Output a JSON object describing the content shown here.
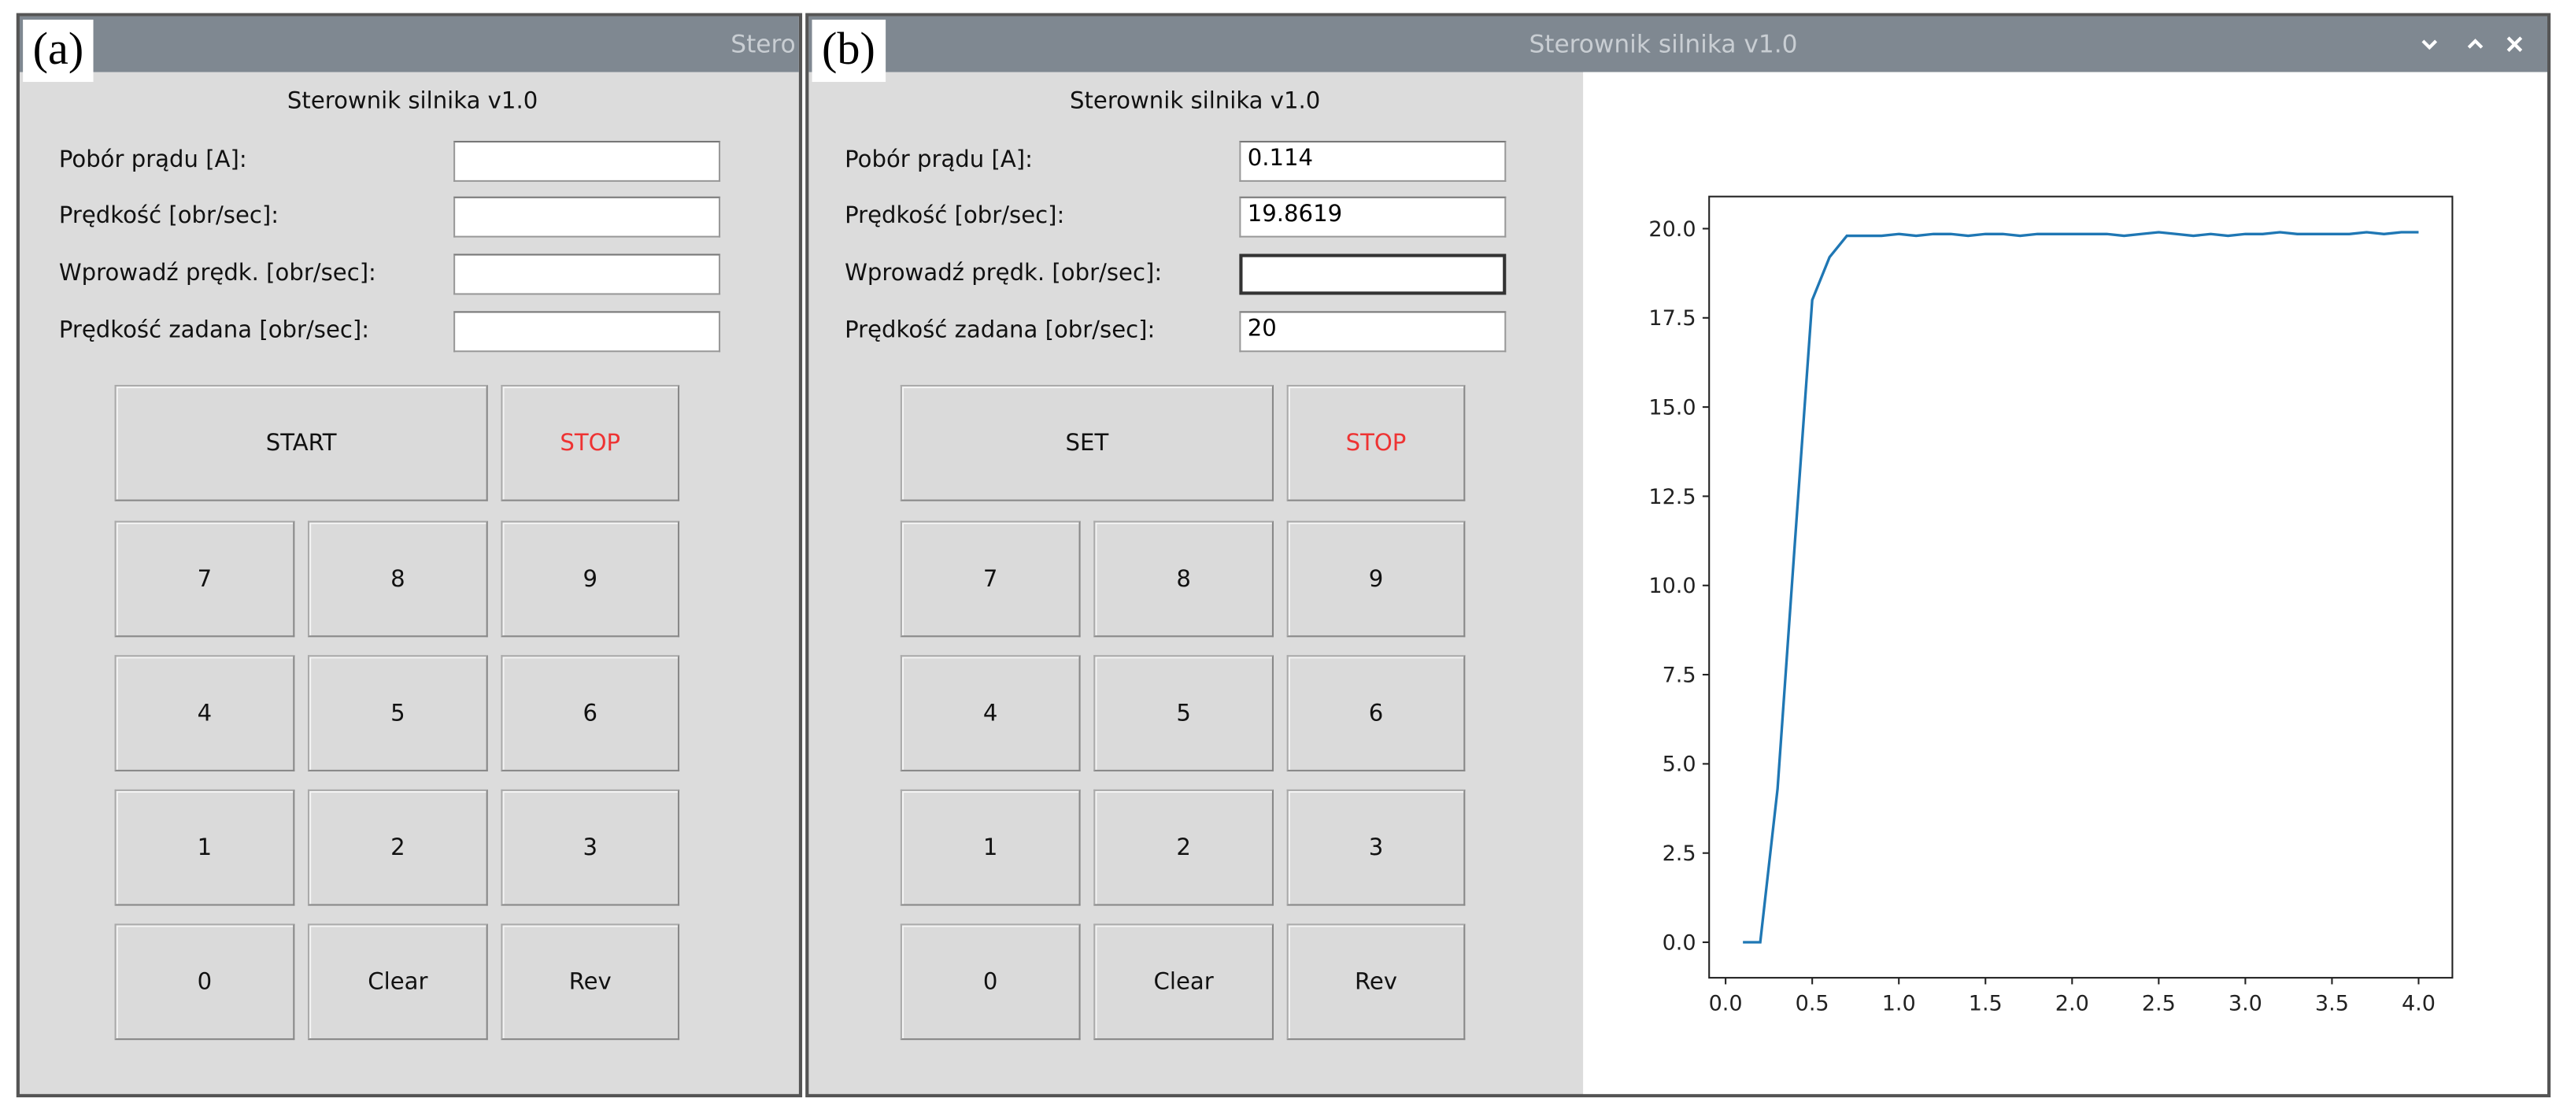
{
  "panels": [
    {
      "tag": "(a)",
      "window_title": "Stero",
      "heading": "Sterownik silnika v1.0",
      "fields": [
        {
          "label": "Pobór prądu [A]:"
        },
        {
          "label": "Prędkość [obr/sec]:"
        },
        {
          "label": "Wprowadź prędk. [obr/sec]:"
        },
        {
          "label": "Prędkość zadana [obr/sec]:"
        }
      ],
      "buttons": [
        "START",
        "STOP",
        "7",
        "8",
        "9",
        "4",
        "5",
        "6",
        "1",
        "2",
        "3",
        "0",
        "Clear",
        "Rev"
      ]
    },
    {
      "tag": "(b)",
      "window_title": "Sterownik silnika v1.0",
      "heading": "Sterownik silnika v1.0",
      "fields": [
        {
          "label": "Pobór prądu [A]:",
          "value": "0.114"
        },
        {
          "label": "Prędkość [obr/sec]:",
          "value": "19.8619"
        },
        {
          "label": "Wprowadź prędk. [obr/sec]:"
        },
        {
          "label": "Prędkość zadana [obr/sec]:",
          "value": "20"
        }
      ],
      "buttons": [
        "SET",
        "STOP",
        "7",
        "8",
        "9",
        "4",
        "5",
        "6",
        "1",
        "2",
        "3",
        "0",
        "Clear",
        "Rev"
      ],
      "chart_data": {
        "type": "line",
        "color": "#1f77b4",
        "x": [
          0.1,
          0.2,
          0.3,
          0.4,
          0.5,
          0.6,
          0.7,
          0.8,
          0.9,
          1.0,
          1.1,
          1.2,
          1.3,
          1.4,
          1.5,
          1.6,
          1.7,
          1.8,
          1.9,
          2.0,
          2.1,
          2.2,
          2.3,
          2.4,
          2.5,
          2.6,
          2.7,
          2.8,
          2.9,
          3.0,
          3.1,
          3.2,
          3.3,
          3.4,
          3.5,
          3.6,
          3.7,
          3.8,
          3.9,
          4.0
        ],
        "values": [
          0,
          0,
          4.3,
          11.2,
          18.0,
          19.2,
          19.8,
          19.8,
          19.8,
          19.85,
          19.8,
          19.85,
          19.85,
          19.8,
          19.85,
          19.85,
          19.8,
          19.85,
          19.85,
          19.85,
          19.85,
          19.85,
          19.8,
          19.85,
          19.9,
          19.85,
          19.8,
          19.85,
          19.8,
          19.85,
          19.85,
          19.9,
          19.85,
          19.85,
          19.85,
          19.85,
          19.9,
          19.85,
          19.9,
          19.9
        ],
        "xlim": [
          -0.095,
          4.195
        ],
        "ylim": [
          -0.995,
          20.9
        ],
        "xticks": [
          {
            "value": 0,
            "label": "0.0"
          },
          0.5,
          {
            "value": 1,
            "label": "1.0"
          },
          1.5,
          {
            "value": 2,
            "label": "2.0"
          },
          2.5,
          {
            "value": 3,
            "label": "3.0"
          },
          3.5,
          {
            "value": 4,
            "label": "4.0"
          }
        ],
        "yticks": [
          {
            "value": 0,
            "label": "0.0"
          },
          2.5,
          {
            "value": 5,
            "label": "5.0"
          },
          7.5,
          {
            "value": 10,
            "label": "10.0"
          },
          12.5,
          {
            "value": 15,
            "label": "15.0"
          },
          17.5,
          {
            "value": 20,
            "label": "20.0"
          }
        ]
      }
    }
  ]
}
